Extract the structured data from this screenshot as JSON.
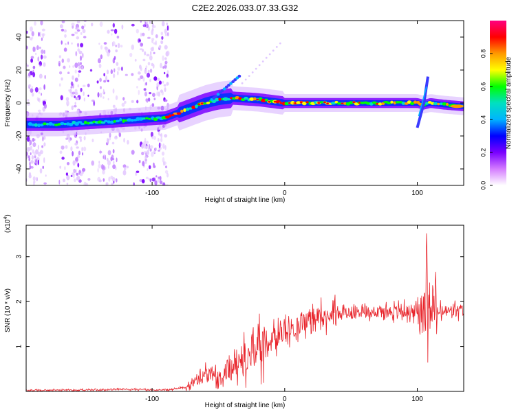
{
  "title": "C2E2.2026.033.07.33.G32",
  "chart_data": [
    {
      "type": "heatmap",
      "xlabel": "Height of straight line (km)",
      "ylabel": "Frequency (Hz)",
      "xlim": [
        -195,
        135
      ],
      "ylim": [
        -50,
        50
      ],
      "xticks": [
        -100,
        0,
        100
      ],
      "yticks": [
        -40,
        -20,
        0,
        20,
        40
      ],
      "colorbar": {
        "label": "Normalized spectral amplitude",
        "range": [
          0,
          1
        ],
        "ticks": [
          "0.0",
          "0.2",
          "0.4",
          "0.6",
          "0.8"
        ],
        "colors": [
          "#ffffff",
          "#d47cff",
          "#7a00ff",
          "#0000ff",
          "#00b4ff",
          "#00e0c0",
          "#00ff00",
          "#ffff00",
          "#ff9900",
          "#ff0000",
          "#ff0080"
        ]
      },
      "ridge": {
        "x": [
          -190,
          -180,
          -170,
          -160,
          -150,
          -140,
          -130,
          -120,
          -110,
          -100,
          -90,
          -80,
          -70,
          -60,
          -50,
          -40,
          -30,
          -20,
          -10,
          0,
          20,
          40,
          60,
          80,
          100,
          105,
          110,
          120,
          135
        ],
        "freq": [
          -13,
          -13,
          -13,
          -12.5,
          -12,
          -11.5,
          -11,
          -10.5,
          -10,
          -9.5,
          -9,
          -6,
          -3,
          0,
          2,
          3,
          2.5,
          2,
          1,
          0,
          0,
          0,
          0,
          0,
          0,
          -1,
          0,
          -1,
          -2
        ]
      }
    },
    {
      "type": "line",
      "xlabel": "Height of straight line (km)",
      "ylabel": "SNR (10 * v/v)",
      "yscale_label": "(x10",
      "yscale_exp": "4",
      "xlim": [
        -195,
        135
      ],
      "ylim": [
        0,
        3.7
      ],
      "xticks": [
        -100,
        0,
        100
      ],
      "yticks": [
        1,
        2,
        3
      ],
      "color": "#e8232a",
      "trend": {
        "x": [
          -195,
          -170,
          -140,
          -120,
          -100,
          -85,
          -75,
          -60,
          -45,
          -30,
          -20,
          -10,
          0,
          10,
          20,
          40,
          60,
          80,
          100,
          105,
          108,
          112,
          115,
          120,
          135
        ],
        "y": [
          0.02,
          0.03,
          0.03,
          0.05,
          0.03,
          0.04,
          0.1,
          0.35,
          0.45,
          0.75,
          1.0,
          1.15,
          1.3,
          1.5,
          1.62,
          1.72,
          1.78,
          1.78,
          1.78,
          1.9,
          2.4,
          1.9,
          1.75,
          1.78,
          1.8
        ]
      }
    }
  ]
}
